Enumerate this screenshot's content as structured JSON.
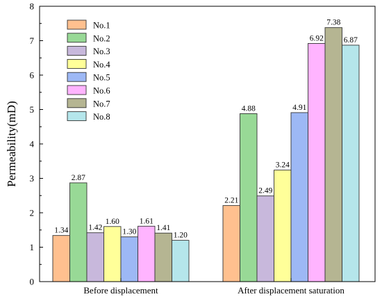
{
  "chart_data": {
    "type": "bar",
    "categories": [
      "Before displacement",
      "After displacement saturation"
    ],
    "series": [
      {
        "name": "No.1",
        "color": "#FFC08F",
        "values": [
          1.34,
          2.21
        ],
        "labels": [
          "1.34",
          "2.21"
        ]
      },
      {
        "name": "No.2",
        "color": "#98D996",
        "values": [
          2.87,
          4.88
        ],
        "labels": [
          "2.87",
          "4.88"
        ]
      },
      {
        "name": "No.3",
        "color": "#C8B8DC",
        "values": [
          1.42,
          2.49
        ],
        "labels": [
          "1.42",
          "2.49"
        ]
      },
      {
        "name": "No.4",
        "color": "#FFFF99",
        "values": [
          1.6,
          3.24
        ],
        "labels": [
          "1.60",
          "3.24"
        ]
      },
      {
        "name": "No.5",
        "color": "#9DB8F5",
        "values": [
          1.3,
          4.91
        ],
        "labels": [
          "1.30",
          "4.91"
        ]
      },
      {
        "name": "No.6",
        "color": "#FFB4FF",
        "values": [
          1.61,
          6.92
        ],
        "labels": [
          "1.61",
          "6.92"
        ]
      },
      {
        "name": "No.7",
        "color": "#B5B592",
        "values": [
          1.41,
          7.38
        ],
        "labels": [
          "1.41",
          "7.38"
        ]
      },
      {
        "name": "No.8",
        "color": "#B5E6EB",
        "values": [
          1.2,
          6.87
        ],
        "labels": [
          "1.20",
          "6.87"
        ]
      }
    ],
    "title": "",
    "xlabel": "",
    "ylabel": "Permeability(mD)",
    "ylim": [
      0,
      8
    ],
    "yticks": [
      "0",
      "1",
      "2",
      "3",
      "4",
      "5",
      "6",
      "7",
      "8"
    ],
    "grid": false,
    "legend_position": "top-left"
  }
}
